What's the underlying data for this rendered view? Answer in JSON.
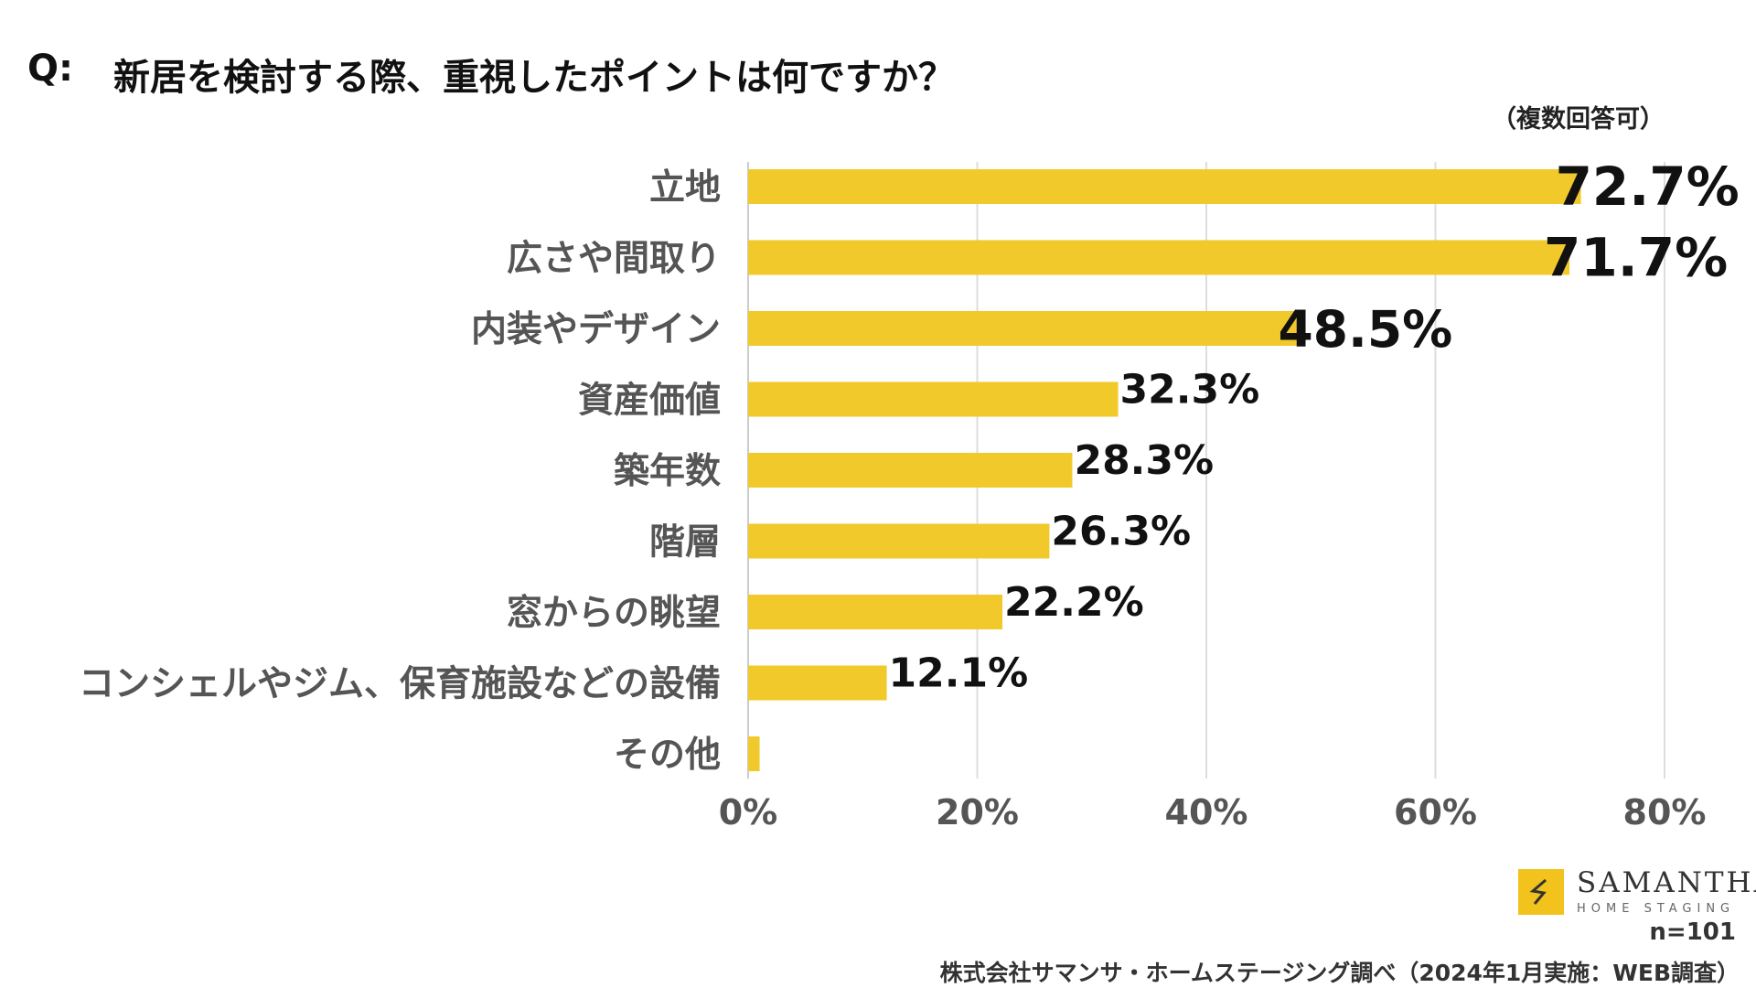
{
  "header": {
    "q_prefix": "Q:",
    "question": "新居を検討する際、重視したポイントは何ですか？",
    "note": "（複数回答可）"
  },
  "chart_data": {
    "type": "bar",
    "orientation": "horizontal",
    "categories": [
      "立地",
      "広さや間取り",
      "内装やデザイン",
      "資産価値",
      "築年数",
      "階層",
      "窓からの眺望",
      "コンシェルやジム、保育施設などの設備",
      "その他"
    ],
    "values": [
      72.7,
      71.7,
      48.5,
      32.3,
      28.3,
      26.3,
      22.2,
      12.1,
      1.0
    ],
    "value_labels": [
      "72.7%",
      "71.7%",
      "48.5%",
      "32.3%",
      "28.3%",
      "26.3%",
      "22.2%",
      "12.1%",
      ""
    ],
    "xlim": [
      0,
      80
    ],
    "xticks": [
      0,
      20,
      40,
      60,
      80
    ],
    "xtick_labels": [
      "0%",
      "20%",
      "40%",
      "60%",
      "80%"
    ],
    "grid": true,
    "bar_color": "#f2c92a",
    "grid_color": "#dddddd"
  },
  "footer": {
    "brand_name": "SAMANTHA",
    "brand_sub": "HOME STAGING",
    "n": "n=101",
    "source": "株式会社サマンサ・ホームステージング調べ（2024年1月実施：WEB調査）"
  }
}
